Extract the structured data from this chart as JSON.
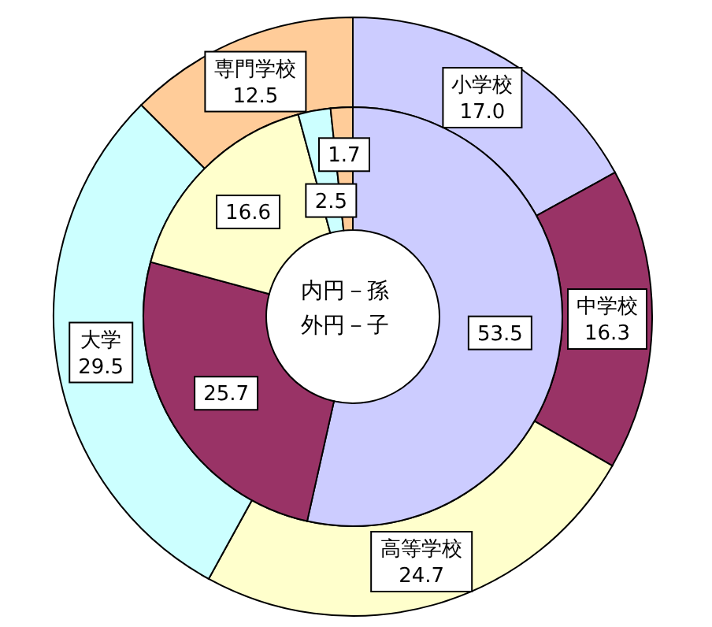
{
  "chart_data": {
    "type": "donut",
    "categories": [
      "小学校",
      "中学校",
      "高等学校",
      "大学",
      "専門学校"
    ],
    "colors": [
      "#ccccff",
      "#993366",
      "#ffffcc",
      "#ccffff",
      "#ffcc99"
    ],
    "series": [
      {
        "values": [
          17.0,
          16.3,
          24.7,
          29.5,
          12.5
        ],
        "value_labels": [
          "17.0",
          "16.3",
          "24.7",
          "29.5",
          "12.5"
        ]
      },
      {
        "values": [
          53.5,
          25.7,
          16.6,
          2.5,
          1.7
        ],
        "value_labels": [
          "53.5",
          "25.7",
          "16.6",
          "2.5",
          "1.7"
        ]
      }
    ],
    "annotations": [
      "内円－孫",
      "外円－子"
    ],
    "legend": false
  }
}
